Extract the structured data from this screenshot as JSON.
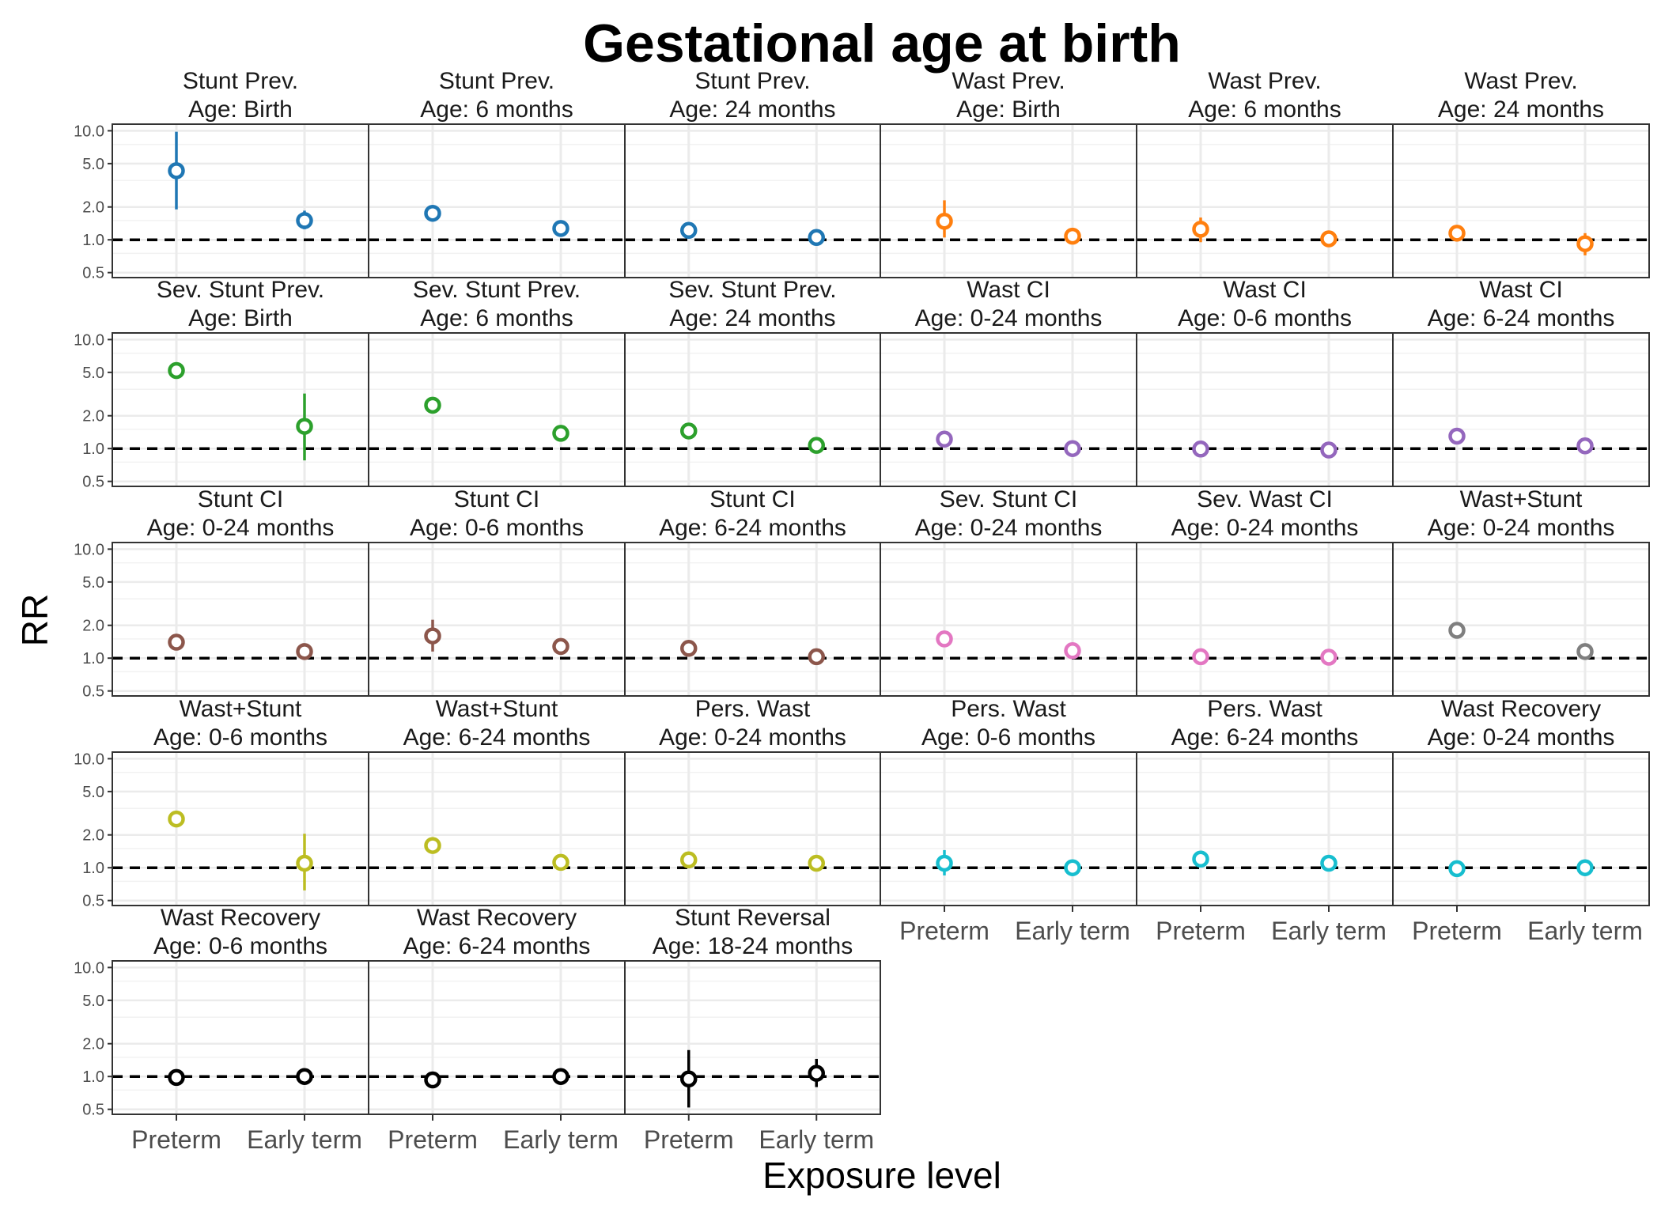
{
  "chart_data": {
    "type": "scatter",
    "title": "Gestational age at birth",
    "xlabel": "Exposure level",
    "ylabel": "RR",
    "y_scale": "log",
    "ylim": [
      0.45,
      11.5
    ],
    "y_ticks": [
      0.5,
      1.0,
      2.0,
      5.0,
      10.0
    ],
    "y_tick_labels": [
      "0.5",
      "1.0",
      "2.0",
      "5.0",
      "10.0"
    ],
    "reference_line": 1.0,
    "categories": [
      "Preterm",
      "Early term"
    ],
    "grid": true,
    "panels": [
      {
        "outcome": "Stunt Prev.",
        "age": "Age: Birth",
        "color": "#1F77B4",
        "points": [
          {
            "category": "Preterm",
            "rr": 4.3,
            "lower": 1.9,
            "upper": 9.8
          },
          {
            "category": "Early term",
            "rr": 1.5,
            "lower": 1.25,
            "upper": 1.85
          }
        ]
      },
      {
        "outcome": "Stunt Prev.",
        "age": "Age: 6 months",
        "color": "#1F77B4",
        "points": [
          {
            "category": "Preterm",
            "rr": 1.75,
            "lower": 1.65,
            "upper": 1.85
          },
          {
            "category": "Early term",
            "rr": 1.27,
            "lower": 1.2,
            "upper": 1.35
          }
        ]
      },
      {
        "outcome": "Stunt Prev.",
        "age": "Age: 24 months",
        "color": "#1F77B4",
        "points": [
          {
            "category": "Preterm",
            "rr": 1.22,
            "lower": 1.15,
            "upper": 1.3
          },
          {
            "category": "Early term",
            "rr": 1.05,
            "lower": 0.99,
            "upper": 1.11
          }
        ]
      },
      {
        "outcome": "Wast Prev.",
        "age": "Age: Birth",
        "color": "#FF7F0E",
        "points": [
          {
            "category": "Preterm",
            "rr": 1.48,
            "lower": 1.05,
            "upper": 2.3
          },
          {
            "category": "Early term",
            "rr": 1.08,
            "lower": 1.0,
            "upper": 1.17
          }
        ]
      },
      {
        "outcome": "Wast Prev.",
        "age": "Age: 6 months",
        "color": "#FF7F0E",
        "points": [
          {
            "category": "Preterm",
            "rr": 1.25,
            "lower": 0.95,
            "upper": 1.6
          },
          {
            "category": "Early term",
            "rr": 1.02,
            "lower": 0.93,
            "upper": 1.12
          }
        ]
      },
      {
        "outcome": "Wast Prev.",
        "age": "Age: 24 months",
        "color": "#FF7F0E",
        "points": [
          {
            "category": "Preterm",
            "rr": 1.15,
            "lower": 1.03,
            "upper": 1.28
          },
          {
            "category": "Early term",
            "rr": 0.92,
            "lower": 0.72,
            "upper": 1.15
          }
        ]
      },
      {
        "outcome": "Sev. Stunt Prev.",
        "age": "Age: Birth",
        "color": "#2CA02C",
        "points": [
          {
            "category": "Preterm",
            "rr": 5.2,
            "lower": 4.8,
            "upper": 5.6
          },
          {
            "category": "Early term",
            "rr": 1.6,
            "lower": 0.78,
            "upper": 3.2
          }
        ]
      },
      {
        "outcome": "Sev. Stunt Prev.",
        "age": "Age: 6 months",
        "color": "#2CA02C",
        "points": [
          {
            "category": "Preterm",
            "rr": 2.5,
            "lower": 2.35,
            "upper": 2.65
          },
          {
            "category": "Early term",
            "rr": 1.38,
            "lower": 1.3,
            "upper": 1.46
          }
        ]
      },
      {
        "outcome": "Sev. Stunt Prev.",
        "age": "Age: 24 months",
        "color": "#2CA02C",
        "points": [
          {
            "category": "Preterm",
            "rr": 1.45,
            "lower": 1.37,
            "upper": 1.53
          },
          {
            "category": "Early term",
            "rr": 1.07,
            "lower": 1.01,
            "upper": 1.13
          }
        ]
      },
      {
        "outcome": "Wast CI",
        "age": "Age: 0-24 months",
        "color": "#9467BD",
        "points": [
          {
            "category": "Preterm",
            "rr": 1.22,
            "lower": 1.15,
            "upper": 1.3
          },
          {
            "category": "Early term",
            "rr": 1.0,
            "lower": 0.95,
            "upper": 1.06
          }
        ]
      },
      {
        "outcome": "Wast CI",
        "age": "Age: 0-6 months",
        "color": "#9467BD",
        "points": [
          {
            "category": "Preterm",
            "rr": 0.99,
            "lower": 0.93,
            "upper": 1.05
          },
          {
            "category": "Early term",
            "rr": 0.97,
            "lower": 0.91,
            "upper": 1.03
          }
        ]
      },
      {
        "outcome": "Wast CI",
        "age": "Age: 6-24 months",
        "color": "#9467BD",
        "points": [
          {
            "category": "Preterm",
            "rr": 1.3,
            "lower": 1.22,
            "upper": 1.38
          },
          {
            "category": "Early term",
            "rr": 1.06,
            "lower": 1.0,
            "upper": 1.12
          }
        ]
      },
      {
        "outcome": "Stunt CI",
        "age": "Age: 0-24 months",
        "color": "#8C564B",
        "points": [
          {
            "category": "Preterm",
            "rr": 1.4,
            "lower": 1.25,
            "upper": 1.57
          },
          {
            "category": "Early term",
            "rr": 1.15,
            "lower": 1.08,
            "upper": 1.22
          }
        ]
      },
      {
        "outcome": "Stunt CI",
        "age": "Age: 0-6 months",
        "color": "#8C564B",
        "points": [
          {
            "category": "Preterm",
            "rr": 1.6,
            "lower": 1.15,
            "upper": 2.25
          },
          {
            "category": "Early term",
            "rr": 1.28,
            "lower": 1.2,
            "upper": 1.36
          }
        ]
      },
      {
        "outcome": "Stunt CI",
        "age": "Age: 6-24 months",
        "color": "#8C564B",
        "points": [
          {
            "category": "Preterm",
            "rr": 1.23,
            "lower": 1.16,
            "upper": 1.31
          },
          {
            "category": "Early term",
            "rr": 1.03,
            "lower": 0.97,
            "upper": 1.09
          }
        ]
      },
      {
        "outcome": "Sev. Stunt CI",
        "age": "Age: 0-24 months",
        "color": "#E377C2",
        "points": [
          {
            "category": "Preterm",
            "rr": 1.5,
            "lower": 1.42,
            "upper": 1.58
          },
          {
            "category": "Early term",
            "rr": 1.17,
            "lower": 1.1,
            "upper": 1.24
          }
        ]
      },
      {
        "outcome": "Sev. Wast CI",
        "age": "Age: 0-24 months",
        "color": "#E377C2",
        "points": [
          {
            "category": "Preterm",
            "rr": 1.03,
            "lower": 0.97,
            "upper": 1.09
          },
          {
            "category": "Early term",
            "rr": 1.02,
            "lower": 0.96,
            "upper": 1.08
          }
        ]
      },
      {
        "outcome": "Wast+Stunt",
        "age": "Age: 0-24 months",
        "color": "#7F7F7F",
        "points": [
          {
            "category": "Preterm",
            "rr": 1.8,
            "lower": 1.7,
            "upper": 1.9
          },
          {
            "category": "Early term",
            "rr": 1.15,
            "lower": 1.08,
            "upper": 1.22
          }
        ]
      },
      {
        "outcome": "Wast+Stunt",
        "age": "Age: 0-6 months",
        "color": "#BCBD22",
        "points": [
          {
            "category": "Preterm",
            "rr": 2.8,
            "lower": 2.65,
            "upper": 2.95
          },
          {
            "category": "Early term",
            "rr": 1.1,
            "lower": 0.62,
            "upper": 2.05
          }
        ]
      },
      {
        "outcome": "Wast+Stunt",
        "age": "Age: 6-24 months",
        "color": "#BCBD22",
        "points": [
          {
            "category": "Preterm",
            "rr": 1.6,
            "lower": 1.51,
            "upper": 1.69
          },
          {
            "category": "Early term",
            "rr": 1.12,
            "lower": 1.05,
            "upper": 1.19
          }
        ]
      },
      {
        "outcome": "Pers. Wast",
        "age": "Age: 0-24 months",
        "color": "#BCBD22",
        "points": [
          {
            "category": "Preterm",
            "rr": 1.18,
            "lower": 1.11,
            "upper": 1.25
          },
          {
            "category": "Early term",
            "rr": 1.1,
            "lower": 1.03,
            "upper": 1.17
          }
        ]
      },
      {
        "outcome": "Pers. Wast",
        "age": "Age: 0-6 months",
        "color": "#17BECF",
        "points": [
          {
            "category": "Preterm",
            "rr": 1.1,
            "lower": 0.85,
            "upper": 1.45
          },
          {
            "category": "Early term",
            "rr": 1.0,
            "lower": 0.94,
            "upper": 1.06
          }
        ]
      },
      {
        "outcome": "Pers. Wast",
        "age": "Age: 6-24 months",
        "color": "#17BECF",
        "points": [
          {
            "category": "Preterm",
            "rr": 1.2,
            "lower": 1.13,
            "upper": 1.27
          },
          {
            "category": "Early term",
            "rr": 1.1,
            "lower": 1.03,
            "upper": 1.17
          }
        ]
      },
      {
        "outcome": "Wast Recovery",
        "age": "Age: 0-24 months",
        "color": "#17BECF",
        "points": [
          {
            "category": "Preterm",
            "rr": 0.98,
            "lower": 0.92,
            "upper": 1.04
          },
          {
            "category": "Early term",
            "rr": 1.0,
            "lower": 0.94,
            "upper": 1.06
          }
        ]
      },
      {
        "outcome": "Wast Recovery",
        "age": "Age: 0-6 months",
        "color": "#000000",
        "points": [
          {
            "category": "Preterm",
            "rr": 0.98,
            "lower": 0.92,
            "upper": 1.04
          },
          {
            "category": "Early term",
            "rr": 1.0,
            "lower": 0.94,
            "upper": 1.06
          }
        ]
      },
      {
        "outcome": "Wast Recovery",
        "age": "Age: 6-24 months",
        "color": "#000000",
        "points": [
          {
            "category": "Preterm",
            "rr": 0.93,
            "lower": 0.88,
            "upper": 0.99
          },
          {
            "category": "Early term",
            "rr": 1.0,
            "lower": 0.94,
            "upper": 1.06
          }
        ]
      },
      {
        "outcome": "Stunt Reversal",
        "age": "Age: 18-24 months",
        "color": "#000000",
        "points": [
          {
            "category": "Preterm",
            "rr": 0.95,
            "lower": 0.52,
            "upper": 1.75
          },
          {
            "category": "Early term",
            "rr": 1.07,
            "lower": 0.8,
            "upper": 1.45
          }
        ]
      }
    ]
  }
}
